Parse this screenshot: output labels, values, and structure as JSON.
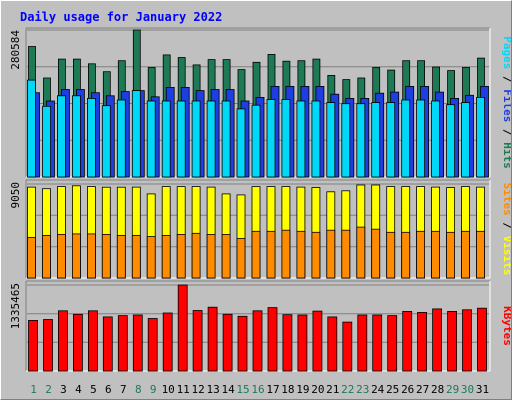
{
  "chart_data": {
    "type": "bar",
    "title": "Daily usage for January 2022",
    "categories": [
      "1",
      "2",
      "3",
      "4",
      "5",
      "6",
      "7",
      "8",
      "9",
      "10",
      "11",
      "12",
      "13",
      "14",
      "15",
      "16",
      "17",
      "18",
      "19",
      "20",
      "21",
      "22",
      "23",
      "24",
      "25",
      "26",
      "27",
      "28",
      "29",
      "30",
      "31"
    ],
    "weekend_days": [
      "1",
      "2",
      "8",
      "9",
      "15",
      "16",
      "22",
      "23",
      "29",
      "30"
    ],
    "panels": [
      {
        "name": "requests",
        "ymax_label": "280584",
        "ymax": 280584,
        "side_labels": [
          "Pages",
          "Files",
          "Hits"
        ],
        "series": [
          {
            "name": "Hits",
            "color": "#1e7a55",
            "values": [
              249000,
              189000,
              225000,
              225000,
              216000,
              201000,
              222000,
              280584,
              209000,
              233000,
              228000,
              214000,
              224000,
              224000,
              205000,
              219000,
              234000,
              221000,
              222000,
              225000,
              194000,
              186000,
              189000,
              209000,
              204000,
              222000,
              222000,
              210000,
              203000,
              209000,
              227000
            ]
          },
          {
            "name": "Files",
            "color": "#1f3ee0",
            "values": [
              161000,
              145000,
              167000,
              167000,
              161000,
              155000,
              163000,
              165000,
              153000,
              171000,
              171000,
              165000,
              167000,
              167000,
              145000,
              152000,
              173000,
              173000,
              173000,
              173000,
              158000,
              150000,
              150000,
              160000,
              162000,
              173000,
              173000,
              162000,
              150000,
              156000,
              173000
            ]
          },
          {
            "name": "Pages",
            "color": "#00d8f8",
            "values": [
              185000,
              135000,
              155000,
              155000,
              150000,
              136000,
              147000,
              165000,
              145000,
              145000,
              145000,
              145000,
              145000,
              145000,
              130000,
              137000,
              148000,
              148000,
              145000,
              145000,
              142000,
              140000,
              140000,
              142000,
              142000,
              147000,
              147000,
              145000,
              138000,
              142000,
              152000
            ]
          }
        ]
      },
      {
        "name": "visits",
        "ymax_label": "9050",
        "ymax": 9050,
        "side_labels": [
          "Sites",
          "Visits"
        ],
        "series": [
          {
            "name": "Visits",
            "color": "#ffff00",
            "values": [
              8750,
              8600,
              8800,
              8880,
              8800,
              8740,
              8740,
              8750,
              8100,
              8800,
              8800,
              8800,
              8750,
              8100,
              8000,
              8800,
              8800,
              8800,
              8750,
              8700,
              8300,
              8400,
              8950,
              8950,
              8800,
              8800,
              8800,
              8750,
              8700,
              8800,
              8750
            ]
          },
          {
            "name": "Sites",
            "color": "#ff8c00",
            "values": [
              3900,
              4100,
              4200,
              4250,
              4250,
              4200,
              4100,
              4100,
              4000,
              4100,
              4200,
              4300,
              4200,
              4200,
              3800,
              4500,
              4500,
              4600,
              4500,
              4400,
              4600,
              4600,
              4900,
              4700,
              4400,
              4400,
              4500,
              4500,
              4400,
              4500,
              4500
            ]
          }
        ]
      },
      {
        "name": "kbytes",
        "ymax_label": "1335465",
        "ymax": 1335465,
        "side_labels": [
          "KBytes"
        ],
        "series": [
          {
            "name": "KBytes",
            "color": "#ff0000",
            "values": [
              785000,
              800000,
              935000,
              880000,
              935000,
              840000,
              860000,
              870000,
              815000,
              900000,
              1335465,
              940000,
              990000,
              880000,
              850000,
              935000,
              985000,
              875000,
              870000,
              930000,
              840000,
              760000,
              870000,
              870000,
              860000,
              925000,
              910000,
              965000,
              925000,
              950000,
              975000
            ]
          }
        ]
      }
    ]
  }
}
